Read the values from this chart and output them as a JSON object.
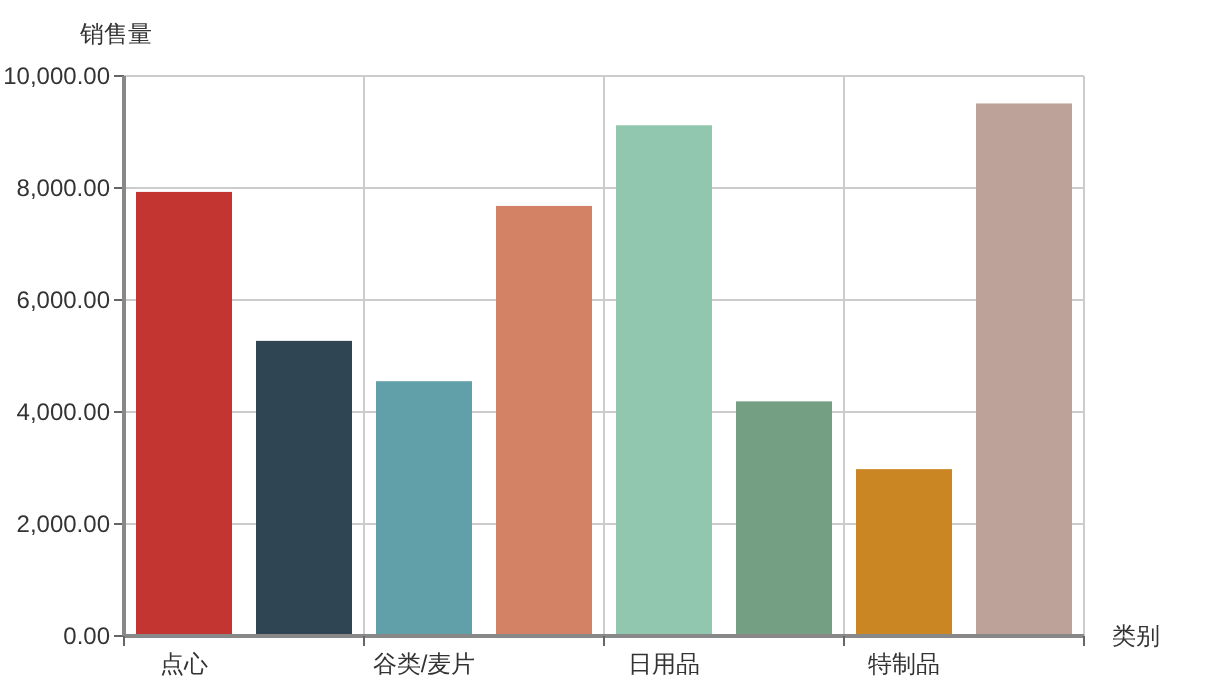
{
  "chart_data": {
    "type": "bar",
    "ylabel": "销售量",
    "xlabel": "类别",
    "categories": [
      "点心",
      null,
      "谷类/麦片",
      null,
      "日用品",
      null,
      "特制品",
      null
    ],
    "values": [
      7930,
      5270,
      4550,
      7680,
      9120,
      4190,
      2980,
      9510
    ],
    "colors": [
      "#c23531",
      "#2f4554",
      "#61a0a8",
      "#d48265",
      "#91c7ae",
      "#749f83",
      "#ca8622",
      "#bda29a"
    ],
    "ylim": [
      0,
      10000
    ],
    "yticks": [
      {
        "value": 0,
        "label": "0.00"
      },
      {
        "value": 2000,
        "label": "2,000.00"
      },
      {
        "value": 4000,
        "label": "4,000.00"
      },
      {
        "value": 6000,
        "label": "6,000.00"
      },
      {
        "value": 8000,
        "label": "8,000.00"
      },
      {
        "value": 10000,
        "label": "10,000.00"
      }
    ],
    "grid": true
  }
}
